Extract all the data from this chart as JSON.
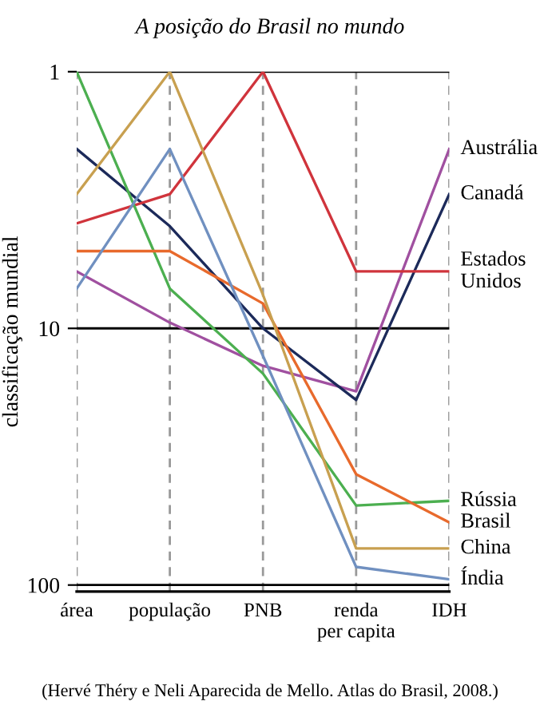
{
  "chart_data": {
    "type": "line",
    "title": "A posição do Brasil no mundo",
    "ylabel": "classificação mundial",
    "categories": [
      "área",
      "população",
      "PNB",
      "renda\nper capita",
      "IDH"
    ],
    "log": "y",
    "ylim": [
      106,
      1
    ],
    "yticks": [
      1,
      10,
      100
    ],
    "grid": true,
    "legend": false,
    "marker": "none",
    "line_style": "solid",
    "series": [
      {
        "name": "Austrália",
        "color": "#a050a0",
        "values": [
          6,
          9.5,
          14,
          17.6,
          2
        ]
      },
      {
        "name": "Canadá",
        "color": "#1c2a5a",
        "values": [
          2,
          4,
          10,
          19,
          3
        ]
      },
      {
        "name": "Estados\nUnidos",
        "color": "#d0343c",
        "values": [
          3.9,
          3,
          1,
          6,
          6
        ]
      },
      {
        "name": "Rússia",
        "color": "#4caf50",
        "values": [
          1,
          7,
          15,
          49,
          47
        ]
      },
      {
        "name": "Brasil",
        "color": "#e86a2c",
        "values": [
          5,
          5,
          8,
          37,
          57
        ]
      },
      {
        "name": "China",
        "color": "#c8a050",
        "values": [
          3,
          1,
          7.4,
          72,
          72
        ]
      },
      {
        "name": "Índia",
        "color": "#7090c0",
        "values": [
          7,
          2,
          12.8,
          85,
          95
        ]
      }
    ],
    "annotations": [
      "(Hervé Théry e Neli Aparecida de Mello. Atlas do Brasil, 2008.)"
    ]
  }
}
